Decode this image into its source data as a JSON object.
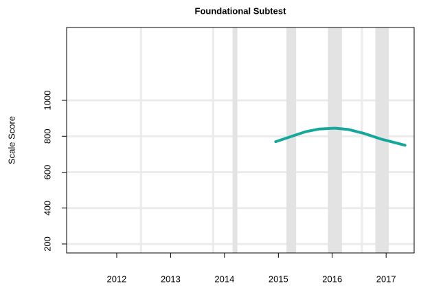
{
  "chart_data": {
    "type": "line",
    "title": "Foundational Subtest",
    "ylabel": "Scale Score",
    "x": [
      2014.95,
      2015.25,
      2015.5,
      2015.75,
      2016.05,
      2016.3,
      2016.6,
      2016.9,
      2017.35
    ],
    "series": [
      {
        "color": "#13a899",
        "values": [
          770,
          800,
          825,
          840,
          845,
          838,
          815,
          785,
          750
        ]
      }
    ],
    "xlim": [
      2011.07,
      2017.52
    ],
    "xticks": [
      2012,
      2013,
      2014,
      2015,
      2016,
      2017
    ],
    "ylim": [
      150,
      1406
    ],
    "yticks": [
      200,
      400,
      600,
      800,
      1000
    ],
    "grid": true,
    "bands": [
      [
        2014.15,
        2014.24
      ],
      [
        2015.15,
        2015.33
      ],
      [
        2015.92,
        2016.18
      ],
      [
        2016.8,
        2017.05
      ]
    ],
    "band_color": "#e3e3e3",
    "vlines": [
      2012.45,
      2013.79,
      2016.55
    ]
  }
}
